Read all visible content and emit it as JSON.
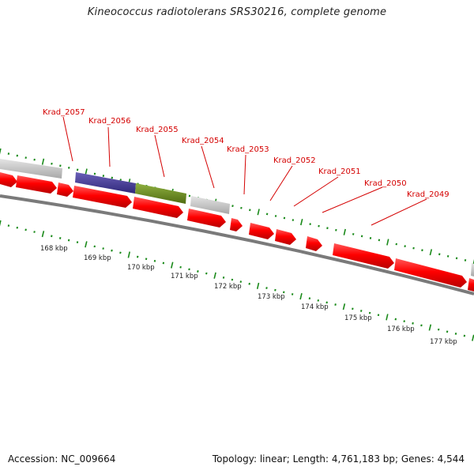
{
  "title": "Kineococcus radiotolerans SRS30216, complete genome",
  "accession": "Accession: NC_009664",
  "summary": "Topology: linear; Length: 4,761,183 bp; Genes: 4,544",
  "colors": {
    "cds": "#ff0000",
    "gene_gray": "#c8c8c8",
    "gene_purple": "#4a3f96",
    "gene_olive": "#6f8f22",
    "tick": "#1a8a1a",
    "backbone": "#7a7a7a",
    "label": "#d40000"
  },
  "gene_labels": [
    "Krad_2057",
    "Krad_2056",
    "Krad_2055",
    "Krad_2054",
    "Krad_2053",
    "Krad_2052",
    "Krad_2051",
    "Krad_2050",
    "Krad_2049"
  ],
  "kbp_labels": [
    "168 kbp",
    "169 kbp",
    "170 kbp",
    "171 kbp",
    "172 kbp",
    "173 kbp",
    "174 kbp",
    "175 kbp",
    "176 kbp",
    "177 kbp"
  ]
}
